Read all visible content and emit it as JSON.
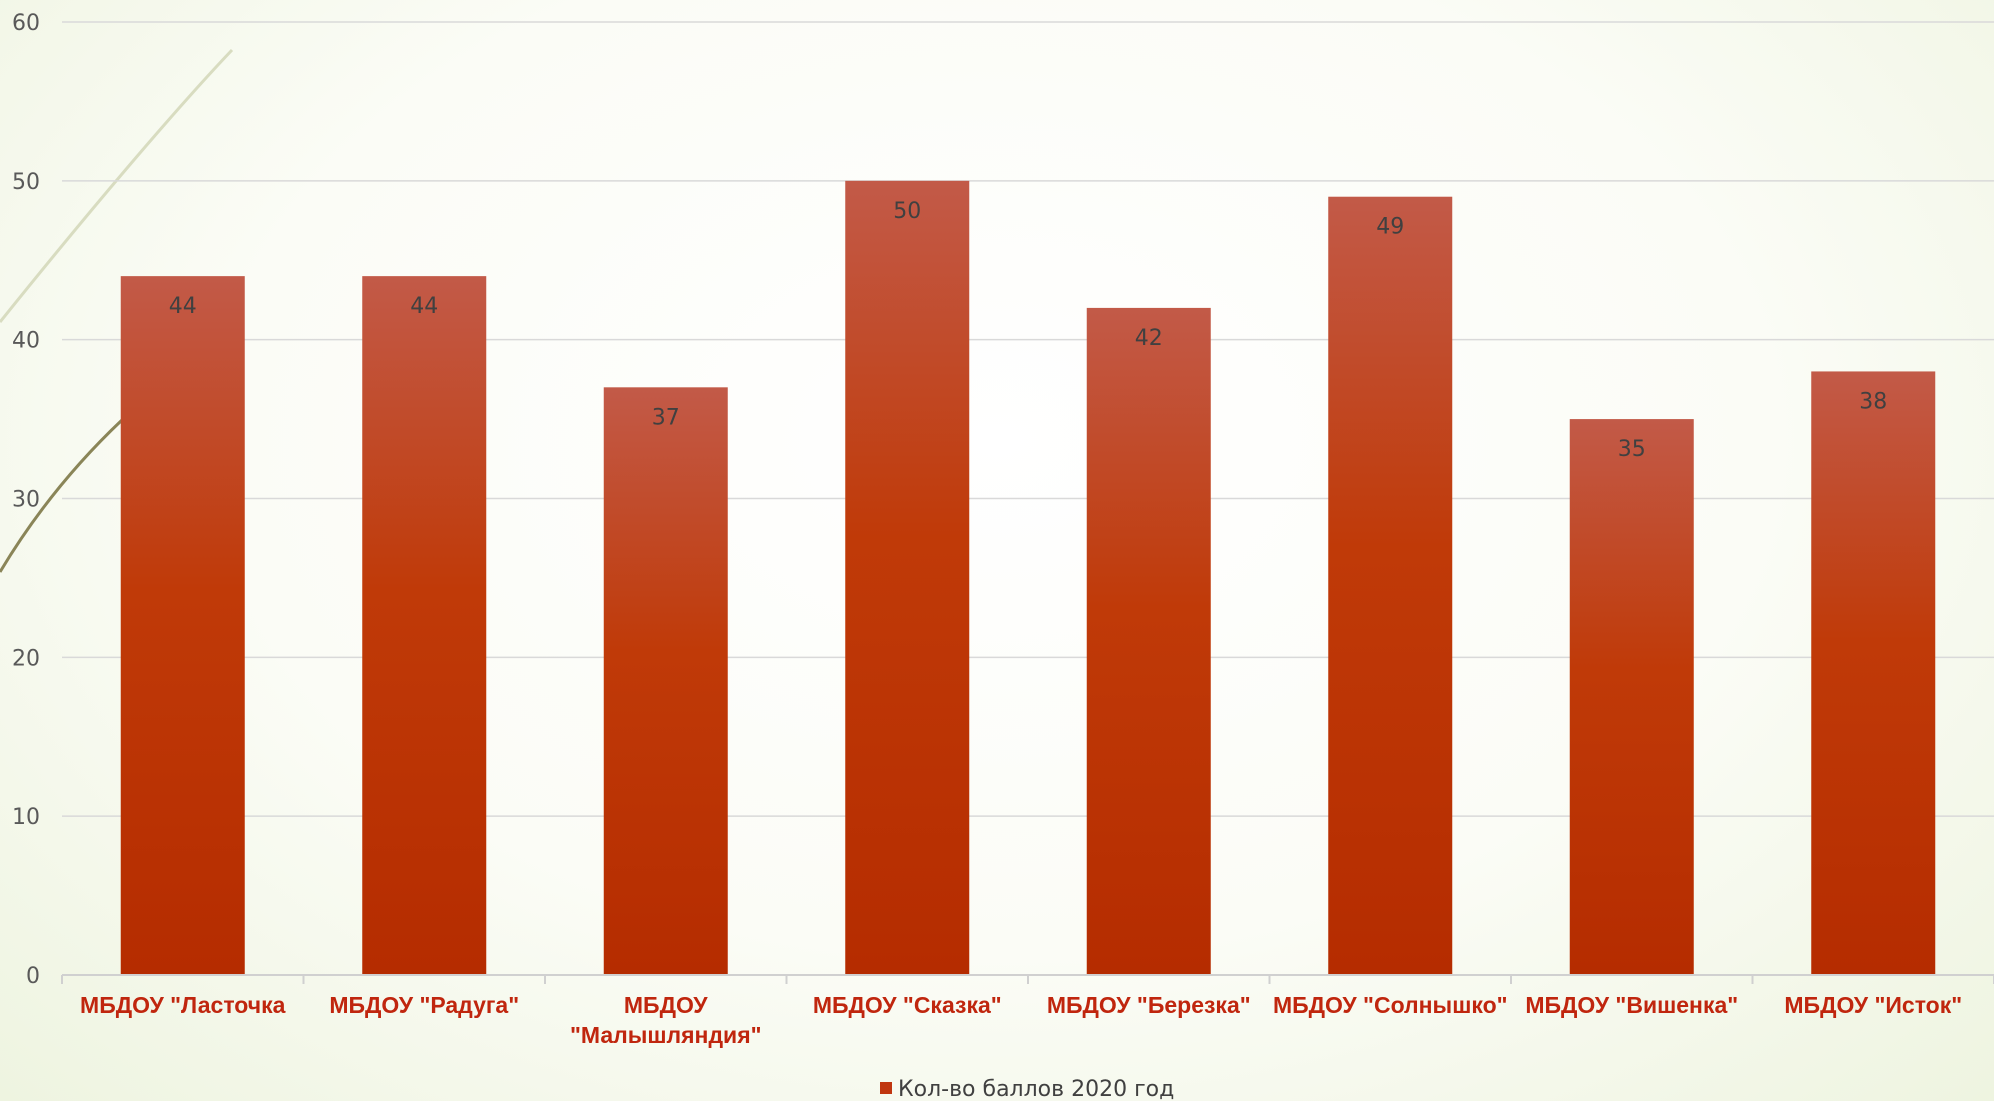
{
  "chart_data": {
    "type": "bar",
    "categories": [
      [
        "МБДОУ \"Ласточка"
      ],
      [
        "МБДОУ \"Радуга\""
      ],
      [
        "МБДОУ",
        "\"Малышляндия\""
      ],
      [
        "МБДОУ \"Сказка\""
      ],
      [
        "МБДОУ \"Березка\""
      ],
      [
        "МБДОУ \"Солнышко\""
      ],
      [
        "МБДОУ \"Вишенка\""
      ],
      [
        "МБДОУ \"Исток\""
      ]
    ],
    "series": [
      {
        "name": "Кол-во баллов 2020 год",
        "values": [
          44,
          44,
          37,
          50,
          42,
          49,
          35,
          38
        ],
        "color": "#c0360f"
      }
    ],
    "yticks": [
      "0",
      "10",
      "20",
      "30",
      "40",
      "50",
      "60"
    ],
    "ylim": [
      0,
      60
    ],
    "grid": true,
    "legend_position": "bottom",
    "colors": {
      "bar_top": "#c25a48",
      "bar_mid": "#c03a08",
      "bar_bottom": "#b52c00",
      "category_text": "#c0260e",
      "gridline": "#d9d9d9"
    }
  }
}
